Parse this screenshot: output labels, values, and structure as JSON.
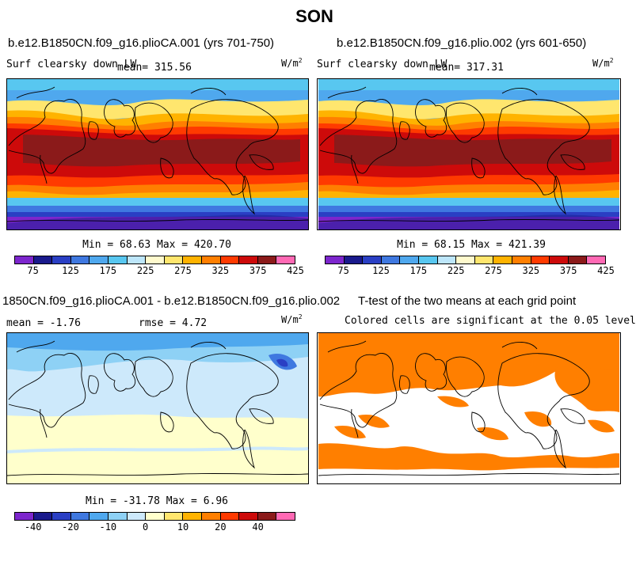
{
  "figure_title": "SON",
  "panels": {
    "p1": {
      "title": "b.e12.B1850CN.f09_g16.plioCA.001 (yrs 701-750)",
      "field": "Surf clearsky down LW",
      "mean": "mean=  315.56",
      "units_base": "W/m",
      "units_exp": "2",
      "minmax": "Min =   68.63 Max =  420.70"
    },
    "p2": {
      "title": "b.e12.B1850CN.f09_g16.plio.002 (yrs 601-650)",
      "field": "Surf clearsky down LW",
      "mean": "mean=  317.31",
      "units_base": "W/m",
      "units_exp": "2",
      "minmax": "Min =   68.15 Max =  421.39"
    },
    "p3": {
      "title": "1850CN.f09_g16.plioCA.001 - b.e12.B1850CN.f09_g16.plio.002",
      "mean": "mean =   -1.76",
      "rmse": "rmse =    4.72",
      "units_base": "W/m",
      "units_exp": "2",
      "minmax": "Min =  -31.78 Max =    6.96"
    },
    "p4": {
      "title": "T-test of the two means at each grid point",
      "subtitle": "Colored cells are significant at the 0.05 level"
    }
  },
  "colorbars": {
    "abs": {
      "colors": [
        "#7d26cd",
        "#1a1a8c",
        "#2a3fc4",
        "#3f78e0",
        "#4fa8ee",
        "#58c7f0",
        "#bde6fa",
        "#fffacd",
        "#ffe66e",
        "#ffb300",
        "#ff7f00",
        "#ff3a00",
        "#cd0a0a",
        "#8b1a1a",
        "#ff69b4"
      ],
      "labels": [
        "75",
        "125",
        "175",
        "225",
        "275",
        "325",
        "375",
        "425"
      ]
    },
    "diff": {
      "colors": [
        "#7d26cd",
        "#1a1a8c",
        "#2a3fc4",
        "#3f78e0",
        "#4fa8ee",
        "#8ed1f5",
        "#cde9fb",
        "#ffffcc",
        "#ffe66e",
        "#ffb300",
        "#ff7f00",
        "#ff3a00",
        "#cd0a0a",
        "#8b1a1a",
        "#ff69b4"
      ],
      "labels": [
        "-40",
        "-20",
        "-10",
        "0",
        "10",
        "20",
        "40"
      ]
    }
  },
  "chart_data": [
    {
      "type": "heatmap",
      "title": "b.e12.B1850CN.f09_g16.plioCA.001 (yrs 701-750)",
      "variable": "Surf clearsky down LW",
      "season": "SON",
      "units": "W/m2",
      "mean": 315.56,
      "min": 68.63,
      "max": 420.7,
      "contour_levels": [
        75,
        100,
        125,
        150,
        175,
        200,
        225,
        250,
        275,
        300,
        325,
        350,
        375,
        400,
        425
      ]
    },
    {
      "type": "heatmap",
      "title": "b.e12.B1850CN.f09_g16.plio.002 (yrs 601-650)",
      "variable": "Surf clearsky down LW",
      "season": "SON",
      "units": "W/m2",
      "mean": 317.31,
      "min": 68.15,
      "max": 421.39,
      "contour_levels": [
        75,
        100,
        125,
        150,
        175,
        200,
        225,
        250,
        275,
        300,
        325,
        350,
        375,
        400,
        425
      ]
    },
    {
      "type": "heatmap",
      "title": "1850CN.f09_g16.plioCA.001 - b.e12.B1850CN.f09_g16.plio.002",
      "units": "W/m2",
      "mean": -1.76,
      "rmse": 4.72,
      "min": -31.78,
      "max": 6.96,
      "contour_levels": [
        -50,
        -40,
        -30,
        -20,
        -15,
        -10,
        -5,
        0,
        5,
        10,
        15,
        20,
        30,
        40,
        50
      ]
    },
    {
      "type": "heatmap",
      "title": "T-test of the two means at each grid point",
      "note": "Colored cells are significant at the 0.05 level",
      "significance_level": 0.05
    }
  ]
}
